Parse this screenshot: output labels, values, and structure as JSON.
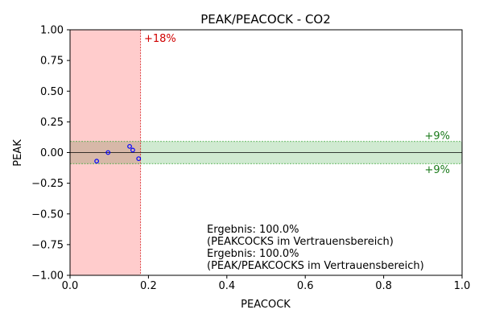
{
  "chart_data": {
    "type": "scatter",
    "title": "PEAK/PEACOCK - CO2",
    "xlabel": "PEACOCK",
    "ylabel": "PEAK",
    "xlim": [
      0.0,
      1.0
    ],
    "ylim": [
      -1.0,
      1.0
    ],
    "x_ticks": [
      "0.0",
      "0.2",
      "0.4",
      "0.6",
      "0.8",
      "1.0"
    ],
    "y_ticks": [
      "−1.00",
      "−0.75",
      "−0.50",
      "−0.25",
      "0.00",
      "0.25",
      "0.50",
      "0.75",
      "1.00"
    ],
    "grid": false,
    "points": [
      {
        "x": 0.068,
        "y": -0.07
      },
      {
        "x": 0.097,
        "y": 0.0
      },
      {
        "x": 0.152,
        "y": 0.05
      },
      {
        "x": 0.16,
        "y": 0.02
      },
      {
        "x": 0.175,
        "y": -0.05
      }
    ],
    "x_band": {
      "from": 0.0,
      "to": 0.18,
      "color": "#ffcccc",
      "edge_color": "#d62728",
      "label": "+18%",
      "label_color": "#d00000"
    },
    "y_band": {
      "from": -0.09,
      "to": 0.09,
      "color": "#c8e6c9",
      "edge_color": "#2ca02c",
      "label_upper": "+9%",
      "label_lower": "+9%",
      "label_color": "#1a7a1a"
    },
    "zero_line_color": "#000000",
    "point_color": "#0000ff",
    "annotations": [
      "Ergebnis: 100.0%",
      "(PEAKCOCKS im Vertrauensbereich)",
      "Ergebnis: 100.0%",
      "(PEAK/PEAKCOCKS im Vertrauensbereich)"
    ]
  }
}
